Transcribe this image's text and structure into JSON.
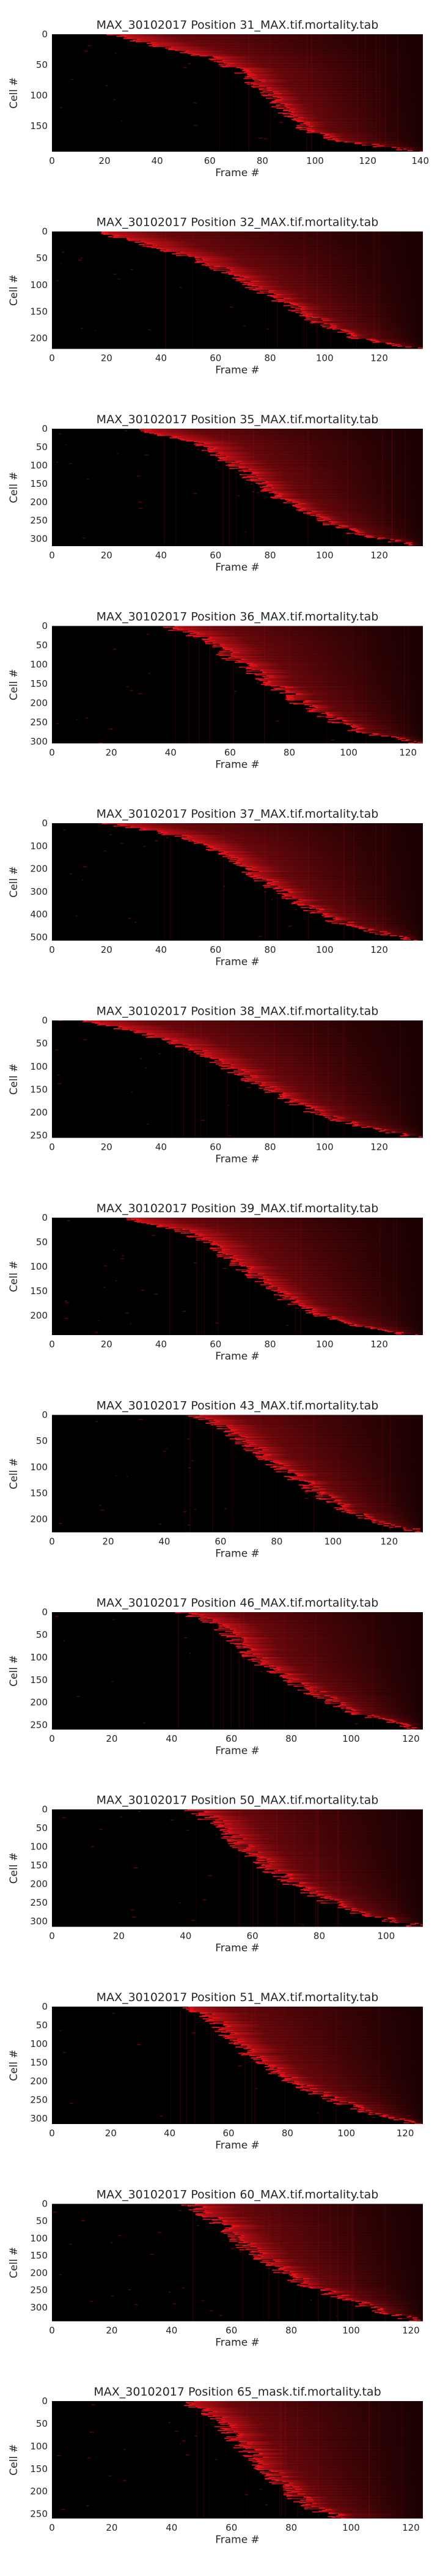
{
  "colors": {
    "background": "#000000",
    "mark": "#e8141c",
    "text": "#262626"
  },
  "colormap": "black-to-red",
  "chart_data": [
    {
      "type": "heatmap",
      "title": "MAX_30102017 Position 31_MAX.tif.mortality.tab",
      "xlabel": "Frame #",
      "ylabel": "Cell #",
      "xlim": [
        0,
        141
      ],
      "ylim": [
        0,
        192
      ],
      "xticks": [
        "0",
        "20",
        "40",
        "60",
        "80",
        "100",
        "120",
        "140"
      ],
      "yticks": [
        "0",
        "50",
        "100",
        "150"
      ],
      "onset_frames": {
        "cell_fraction": [
          0.0,
          0.1,
          0.2,
          0.3,
          0.4,
          0.5,
          0.6,
          0.7,
          0.8,
          0.9,
          1.0
        ],
        "frame": [
          22,
          40,
          60,
          70,
          76,
          82,
          86,
          90,
          96,
          106,
          140
        ]
      }
    },
    {
      "type": "heatmap",
      "title": "MAX_30102017 Position 32_MAX.tif.mortality.tab",
      "xlabel": "Frame #",
      "ylabel": "Cell #",
      "xlim": [
        0,
        136
      ],
      "ylim": [
        0,
        220
      ],
      "xticks": [
        "0",
        "20",
        "40",
        "60",
        "80",
        "100",
        "120"
      ],
      "yticks": [
        "0",
        "50",
        "100",
        "150",
        "200"
      ],
      "onset_frames": {
        "cell_fraction": [
          0.0,
          0.1,
          0.2,
          0.3,
          0.4,
          0.5,
          0.6,
          0.7,
          0.8,
          0.9,
          1.0
        ],
        "frame": [
          18,
          32,
          48,
          60,
          68,
          76,
          84,
          92,
          100,
          110,
          134
        ]
      }
    },
    {
      "type": "heatmap",
      "title": "MAX_30102017 Position 35_MAX.tif.mortality.tab",
      "xlabel": "Frame #",
      "ylabel": "Cell #",
      "xlim": [
        0,
        136
      ],
      "ylim": [
        0,
        320
      ],
      "xticks": [
        "0",
        "20",
        "40",
        "60",
        "80",
        "100",
        "120"
      ],
      "yticks": [
        "0",
        "50",
        "100",
        "150",
        "200",
        "250",
        "300"
      ],
      "onset_frames": {
        "cell_fraction": [
          0.0,
          0.1,
          0.2,
          0.3,
          0.4,
          0.5,
          0.6,
          0.7,
          0.8,
          0.9,
          1.0
        ],
        "frame": [
          30,
          50,
          60,
          66,
          72,
          78,
          84,
          92,
          100,
          112,
          134
        ]
      }
    },
    {
      "type": "heatmap",
      "title": "MAX_30102017 Position 36_MAX.tif.mortality.tab",
      "xlabel": "Frame #",
      "ylabel": "Cell #",
      "xlim": [
        0,
        125
      ],
      "ylim": [
        0,
        305
      ],
      "xticks": [
        "0",
        "20",
        "40",
        "60",
        "80",
        "100",
        "120"
      ],
      "yticks": [
        "0",
        "50",
        "100",
        "150",
        "200",
        "250",
        "300"
      ],
      "onset_frames": {
        "cell_fraction": [
          0.0,
          0.1,
          0.2,
          0.3,
          0.4,
          0.5,
          0.6,
          0.7,
          0.8,
          0.9,
          1.0
        ],
        "frame": [
          38,
          50,
          56,
          62,
          68,
          74,
          80,
          86,
          94,
          104,
          124
        ]
      }
    },
    {
      "type": "heatmap",
      "title": "MAX_30102017 Position 37_MAX.tif.mortality.tab",
      "xlabel": "Frame #",
      "ylabel": "Cell #",
      "xlim": [
        0,
        136
      ],
      "ylim": [
        0,
        515
      ],
      "xticks": [
        "0",
        "20",
        "40",
        "60",
        "80",
        "100",
        "120"
      ],
      "yticks": [
        "0",
        "100",
        "200",
        "300",
        "400",
        "500"
      ],
      "onset_frames": {
        "cell_fraction": [
          0.0,
          0.1,
          0.2,
          0.3,
          0.4,
          0.5,
          0.6,
          0.7,
          0.8,
          0.9,
          1.0
        ],
        "frame": [
          20,
          44,
          58,
          66,
          72,
          78,
          84,
          92,
          100,
          112,
          134
        ]
      }
    },
    {
      "type": "heatmap",
      "title": "MAX_30102017 Position 38_MAX.tif.mortality.tab",
      "xlabel": "Frame #",
      "ylabel": "Cell #",
      "xlim": [
        0,
        136
      ],
      "ylim": [
        0,
        255
      ],
      "xticks": [
        "0",
        "20",
        "40",
        "60",
        "80",
        "100",
        "120"
      ],
      "yticks": [
        "0",
        "50",
        "100",
        "150",
        "200",
        "250"
      ],
      "onset_frames": {
        "cell_fraction": [
          0.0,
          0.1,
          0.2,
          0.3,
          0.4,
          0.5,
          0.6,
          0.7,
          0.8,
          0.9,
          1.0
        ],
        "frame": [
          12,
          30,
          46,
          56,
          64,
          72,
          80,
          88,
          98,
          112,
          134
        ]
      }
    },
    {
      "type": "heatmap",
      "title": "MAX_30102017 Position 39_MAX.tif.mortality.tab",
      "xlabel": "Frame #",
      "ylabel": "Cell #",
      "xlim": [
        0,
        136
      ],
      "ylim": [
        0,
        240
      ],
      "xticks": [
        "0",
        "20",
        "40",
        "60",
        "80",
        "100",
        "120"
      ],
      "yticks": [
        "0",
        "50",
        "100",
        "150",
        "200"
      ],
      "onset_frames": {
        "cell_fraction": [
          0.0,
          0.1,
          0.2,
          0.3,
          0.4,
          0.5,
          0.6,
          0.7,
          0.8,
          0.9,
          1.0
        ],
        "frame": [
          26,
          46,
          56,
          62,
          68,
          74,
          80,
          86,
          94,
          106,
          132
        ]
      }
    },
    {
      "type": "heatmap",
      "title": "MAX_30102017 Position 43_MAX.tif.mortality.tab",
      "xlabel": "Frame #",
      "ylabel": "Cell #",
      "xlim": [
        0,
        132
      ],
      "ylim": [
        0,
        225
      ],
      "xticks": [
        "0",
        "20",
        "40",
        "60",
        "80",
        "100",
        "120"
      ],
      "yticks": [
        "0",
        "50",
        "100",
        "150",
        "200"
      ],
      "onset_frames": {
        "cell_fraction": [
          0.0,
          0.1,
          0.2,
          0.3,
          0.4,
          0.5,
          0.6,
          0.7,
          0.8,
          0.9,
          1.0
        ],
        "frame": [
          50,
          60,
          66,
          72,
          78,
          84,
          90,
          96,
          104,
          114,
          130
        ]
      }
    },
    {
      "type": "heatmap",
      "title": "MAX_30102017 Position 46_MAX.tif.mortality.tab",
      "xlabel": "Frame #",
      "ylabel": "Cell #",
      "xlim": [
        0,
        124
      ],
      "ylim": [
        0,
        260
      ],
      "xticks": [
        "0",
        "20",
        "40",
        "60",
        "80",
        "100",
        "120"
      ],
      "yticks": [
        "0",
        "50",
        "100",
        "150",
        "200",
        "250"
      ],
      "onset_frames": {
        "cell_fraction": [
          0.0,
          0.1,
          0.2,
          0.3,
          0.4,
          0.5,
          0.6,
          0.7,
          0.8,
          0.9,
          1.0
        ],
        "frame": [
          44,
          54,
          60,
          64,
          68,
          74,
          80,
          88,
          96,
          106,
          122
        ]
      }
    },
    {
      "type": "heatmap",
      "title": "MAX_30102017 Position 50_MAX.tif.mortality.tab",
      "xlabel": "Frame #",
      "ylabel": "Cell #",
      "xlim": [
        0,
        111
      ],
      "ylim": [
        0,
        315
      ],
      "xticks": [
        "0",
        "20",
        "40",
        "60",
        "80",
        "100"
      ],
      "yticks": [
        "0",
        "50",
        "100",
        "150",
        "200",
        "250",
        "300"
      ],
      "onset_frames": {
        "cell_fraction": [
          0.0,
          0.1,
          0.2,
          0.3,
          0.4,
          0.5,
          0.6,
          0.7,
          0.8,
          0.9,
          1.0
        ],
        "frame": [
          42,
          48,
          52,
          56,
          60,
          64,
          70,
          76,
          84,
          94,
          110
        ]
      }
    },
    {
      "type": "heatmap",
      "title": "MAX_30102017 Position 51_MAX.tif.mortality.tab",
      "xlabel": "Frame #",
      "ylabel": "Cell #",
      "xlim": [
        0,
        126
      ],
      "ylim": [
        0,
        315
      ],
      "xticks": [
        "0",
        "20",
        "40",
        "60",
        "80",
        "100",
        "120"
      ],
      "yticks": [
        "0",
        "50",
        "100",
        "150",
        "200",
        "250",
        "300"
      ],
      "onset_frames": {
        "cell_fraction": [
          0.0,
          0.1,
          0.2,
          0.3,
          0.4,
          0.5,
          0.6,
          0.7,
          0.8,
          0.9,
          1.0
        ],
        "frame": [
          46,
          54,
          58,
          62,
          66,
          72,
          78,
          86,
          96,
          108,
          124
        ]
      }
    },
    {
      "type": "heatmap",
      "title": "MAX_30102017 Position 60_MAX.tif.mortality.tab",
      "xlabel": "Frame #",
      "ylabel": "Cell #",
      "xlim": [
        0,
        124
      ],
      "ylim": [
        0,
        340
      ],
      "xticks": [
        "0",
        "20",
        "40",
        "60",
        "80",
        "100",
        "120"
      ],
      "yticks": [
        "0",
        "50",
        "100",
        "150",
        "200",
        "250",
        "300"
      ],
      "onset_frames": {
        "cell_fraction": [
          0.0,
          0.1,
          0.2,
          0.3,
          0.4,
          0.5,
          0.6,
          0.7,
          0.8,
          0.9,
          1.0
        ],
        "frame": [
          46,
          52,
          58,
          62,
          66,
          72,
          78,
          86,
          96,
          108,
          122
        ]
      }
    },
    {
      "type": "heatmap",
      "title": "MAX_30102017 Position 65_mask.tif.mortality.tab",
      "xlabel": "Frame #",
      "ylabel": "Cell #",
      "xlim": [
        0,
        124
      ],
      "ylim": [
        0,
        260
      ],
      "xticks": [
        "0",
        "20",
        "40",
        "60",
        "80",
        "100",
        "120"
      ],
      "yticks": [
        "0",
        "50",
        "100",
        "150",
        "200",
        "250"
      ],
      "onset_frames": {
        "cell_fraction": [
          0.0,
          0.1,
          0.2,
          0.3,
          0.4,
          0.5,
          0.6,
          0.7,
          0.8,
          0.9,
          1.0
        ],
        "frame": [
          44,
          52,
          56,
          60,
          64,
          68,
          72,
          76,
          80,
          86,
          96
        ]
      }
    }
  ]
}
